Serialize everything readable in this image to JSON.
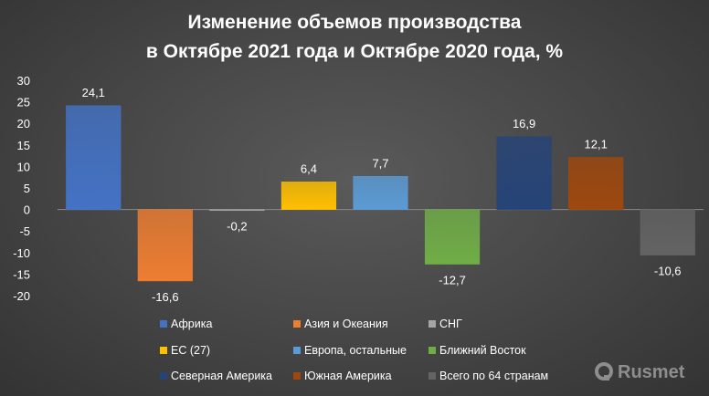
{
  "chart_data": {
    "type": "bar",
    "title_lines": [
      "Изменение объемов производства",
      "в Октябре 2021 года и Октябре 2020 года, %"
    ],
    "categories": [
      "Африка",
      "Азия и Океания",
      "СНГ",
      "ЕС (27)",
      "Европа, остальные",
      "Ближний Восток",
      "Северная Америка",
      "Южная Америка",
      "Всего по 64 странам"
    ],
    "values": [
      24.1,
      -16.6,
      -0.2,
      6.4,
      7.7,
      -12.7,
      16.9,
      12.1,
      -10.6
    ],
    "data_labels": [
      "24,1",
      "-16,6",
      "-0,2",
      "6,4",
      "7,7",
      "-12,7",
      "16,9",
      "12,1",
      "-10,6"
    ],
    "colors": [
      "#4472C4",
      "#ED7D31",
      "#A5A5A5",
      "#FFC000",
      "#5B9BD5",
      "#70AD47",
      "#264478",
      "#9E480E",
      "#636363"
    ],
    "ylim": [
      -20,
      30
    ],
    "y_ticks": [
      "30",
      "25",
      "20",
      "15",
      "10",
      "5",
      "0",
      "-5",
      "-10",
      "-15",
      "-20"
    ],
    "grid": false,
    "legend_position": "bottom",
    "xlabel": "",
    "ylabel": ""
  },
  "watermark": {
    "text": "Rusmet",
    "icon": "rusmet-logo-icon"
  }
}
